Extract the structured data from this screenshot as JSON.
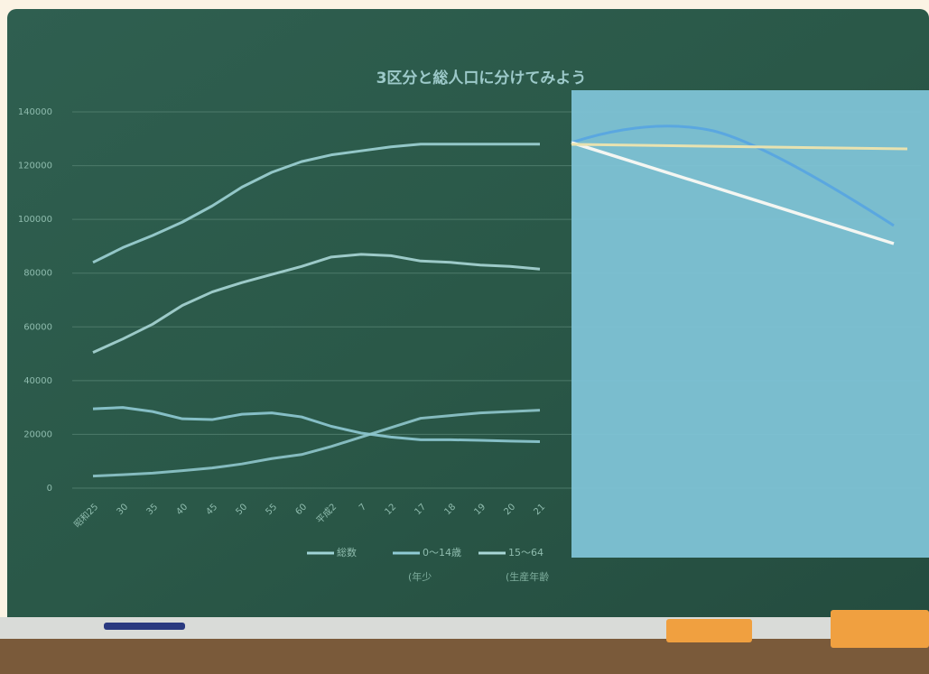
{
  "chart_data": {
    "type": "line",
    "title": "3区分と総人口に分けてみよう",
    "categories": [
      "昭和25",
      "30",
      "35",
      "40",
      "45",
      "50",
      "55",
      "60",
      "平成2",
      "7",
      "12",
      "17",
      "18",
      "19",
      "20",
      "21"
    ],
    "series": [
      {
        "name": "総数",
        "color": "#9fd3d6",
        "values": [
          84000,
          89500,
          94000,
          99000,
          105000,
          112000,
          117500,
          121500,
          124000,
          125500,
          127000,
          128000,
          128000,
          128000,
          128000,
          128000
        ]
      },
      {
        "name": "0～14歳",
        "color": "#8fcad4",
        "values": [
          29500,
          30000,
          28500,
          25800,
          25500,
          27500,
          28000,
          26500,
          23000,
          20500,
          19000,
          18000,
          18000,
          17800,
          17500,
          17300
        ]
      },
      {
        "name": "15～64",
        "color": "#a8d6d6",
        "values": [
          50500,
          55500,
          61000,
          68000,
          73000,
          76500,
          79500,
          82500,
          86000,
          87000,
          86500,
          84500,
          84000,
          83000,
          82500,
          81500
        ]
      },
      {
        "color": "#8fc6cc",
        "values": [
          4500,
          5000,
          5600,
          6500,
          7500,
          9000,
          11000,
          12500,
          15500,
          19000,
          22500,
          26000,
          27000,
          28000,
          28500,
          29000
        ]
      }
    ],
    "annotations": [
      "(年少",
      "(生産年齢"
    ],
    "ylim": [
      0,
      140000
    ],
    "yticks": [
      0,
      20000,
      40000,
      60000,
      80000,
      100000,
      120000,
      140000
    ],
    "grid": true
  }
}
